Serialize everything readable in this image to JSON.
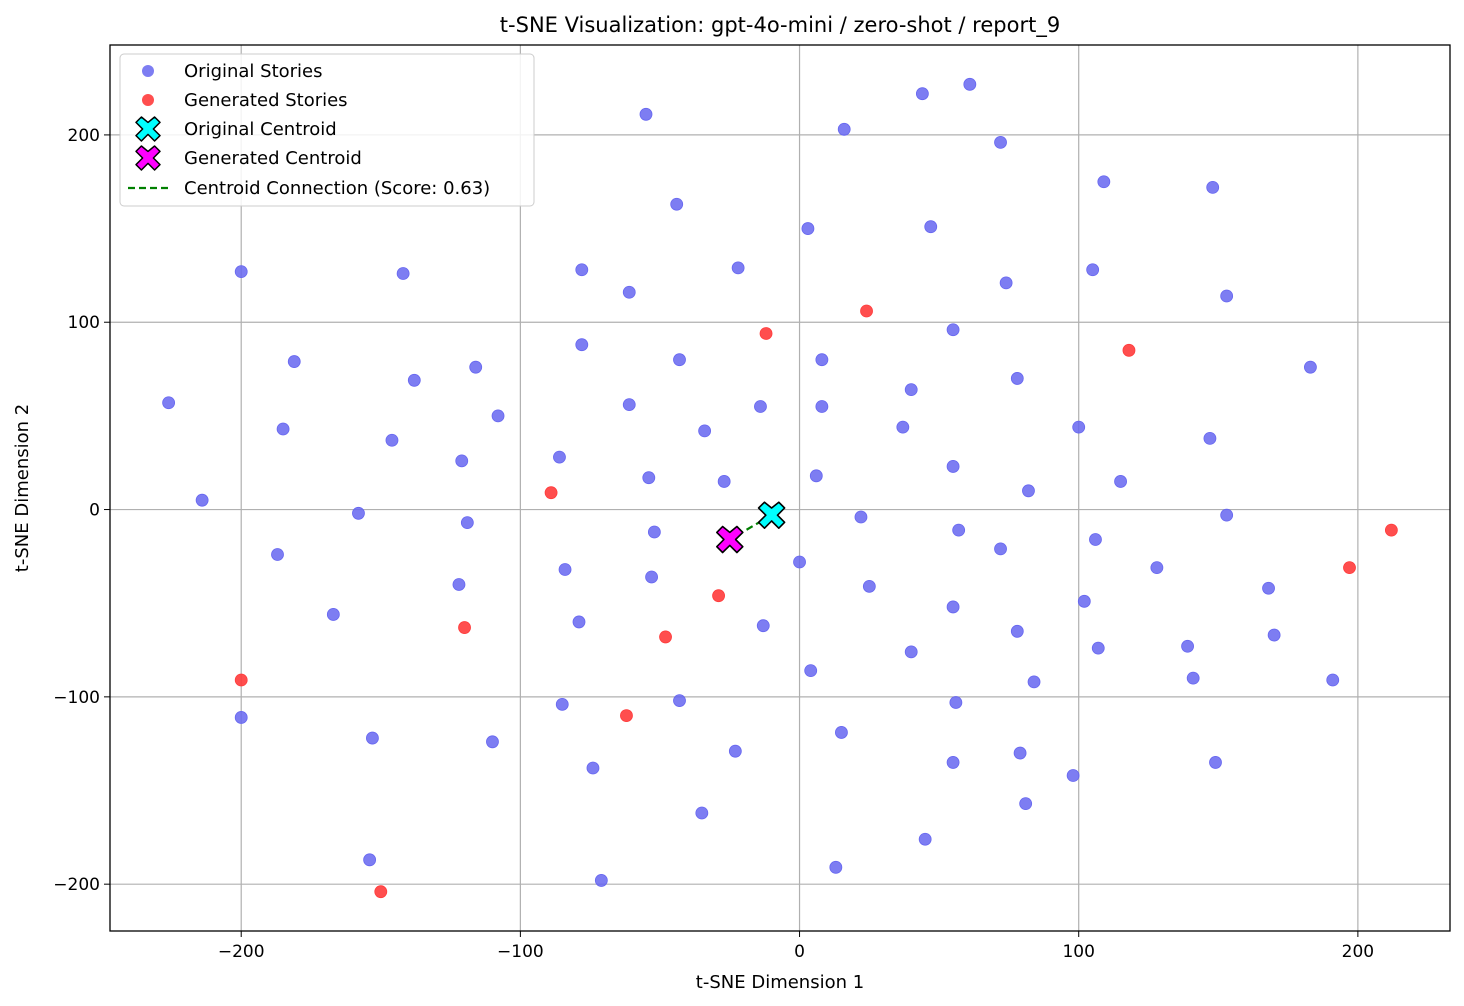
{
  "chart_data": {
    "type": "scatter",
    "title": "t-SNE Visualization: gpt-4o-mini / zero-shot / report_9",
    "xlabel": "t-SNE Dimension 1",
    "ylabel": "t-SNE Dimension 2",
    "xlim": [
      -247,
      233
    ],
    "ylim": [
      -225,
      248
    ],
    "xticks": [
      -200,
      -100,
      0,
      100,
      200
    ],
    "xtick_labels": [
      "−200",
      "−100",
      "0",
      "100",
      "200"
    ],
    "yticks": [
      -200,
      -100,
      0,
      100,
      200
    ],
    "ytick_labels": [
      "−200",
      "−100",
      "0",
      "100",
      "200"
    ],
    "grid": true,
    "legend_position": "top-left",
    "colors": {
      "original": "#6666f0",
      "generated": "#ff3b3b",
      "original_centroid": "#00ffff",
      "generated_centroid": "#ff00ff",
      "connection": "#008000"
    },
    "series": [
      {
        "name": "Original Stories",
        "kind": "points",
        "x": [
          -55,
          61,
          44,
          16,
          72,
          109,
          148,
          -44,
          3,
          47,
          -200,
          -142,
          -78,
          -61,
          -22,
          74,
          105,
          153,
          55,
          -181,
          -116,
          -78,
          -43,
          8,
          40,
          78,
          183,
          -226,
          -138,
          -108,
          -185,
          -146,
          -61,
          -34,
          -14,
          8,
          37,
          100,
          147,
          -121,
          -86,
          -54,
          -27,
          6,
          55,
          82,
          115,
          -214,
          -158,
          -119,
          -52,
          22,
          57,
          153,
          -187,
          -84,
          -53,
          72,
          106,
          -122,
          0,
          25,
          128,
          168,
          -167,
          -79,
          -13,
          55,
          102,
          78,
          139,
          170,
          -43,
          40,
          107,
          4,
          84,
          141,
          191,
          56,
          -200,
          -85,
          15,
          -153,
          -110,
          -23,
          79,
          -74,
          55,
          149,
          98,
          81,
          -35,
          45,
          -154,
          -71,
          13
        ],
        "y": [
          211,
          227,
          222,
          203,
          196,
          175,
          172,
          163,
          150,
          151,
          127,
          126,
          128,
          116,
          129,
          121,
          128,
          114,
          96,
          79,
          76,
          88,
          80,
          80,
          64,
          70,
          76,
          57,
          69,
          50,
          43,
          37,
          56,
          42,
          55,
          55,
          44,
          44,
          38,
          26,
          28,
          17,
          15,
          18,
          23,
          10,
          15,
          5,
          -2,
          -7,
          -12,
          -4,
          -11,
          -3,
          -24,
          -32,
          -36,
          -21,
          -16,
          -40,
          -28,
          -41,
          -31,
          -42,
          -56,
          -60,
          -62,
          -52,
          -49,
          -65,
          -73,
          -67,
          -102,
          -76,
          -74,
          -86,
          -92,
          -90,
          -91,
          -103,
          -111,
          -104,
          -119,
          -122,
          -124,
          -129,
          -130,
          -138,
          -135,
          -135,
          -142,
          -157,
          -162,
          -176,
          -187,
          -198,
          -191
        ]
      },
      {
        "name": "Generated Stories",
        "kind": "points",
        "x": [
          -12,
          24,
          118,
          -89,
          -120,
          -48,
          -29,
          -62,
          -200,
          -150,
          197,
          212
        ],
        "y": [
          94,
          106,
          85,
          9,
          -63,
          -68,
          -46,
          -110,
          -91,
          -204,
          -31,
          -11
        ]
      },
      {
        "name": "Original Centroid",
        "kind": "centroid",
        "x": [
          -10
        ],
        "y": [
          -3
        ]
      },
      {
        "name": "Generated Centroid",
        "kind": "centroid",
        "x": [
          -25
        ],
        "y": [
          -16
        ]
      },
      {
        "name": "Centroid Connection (Score: 0.63)",
        "kind": "line",
        "x": [
          -10,
          -25
        ],
        "y": [
          -3,
          -16
        ]
      }
    ]
  }
}
